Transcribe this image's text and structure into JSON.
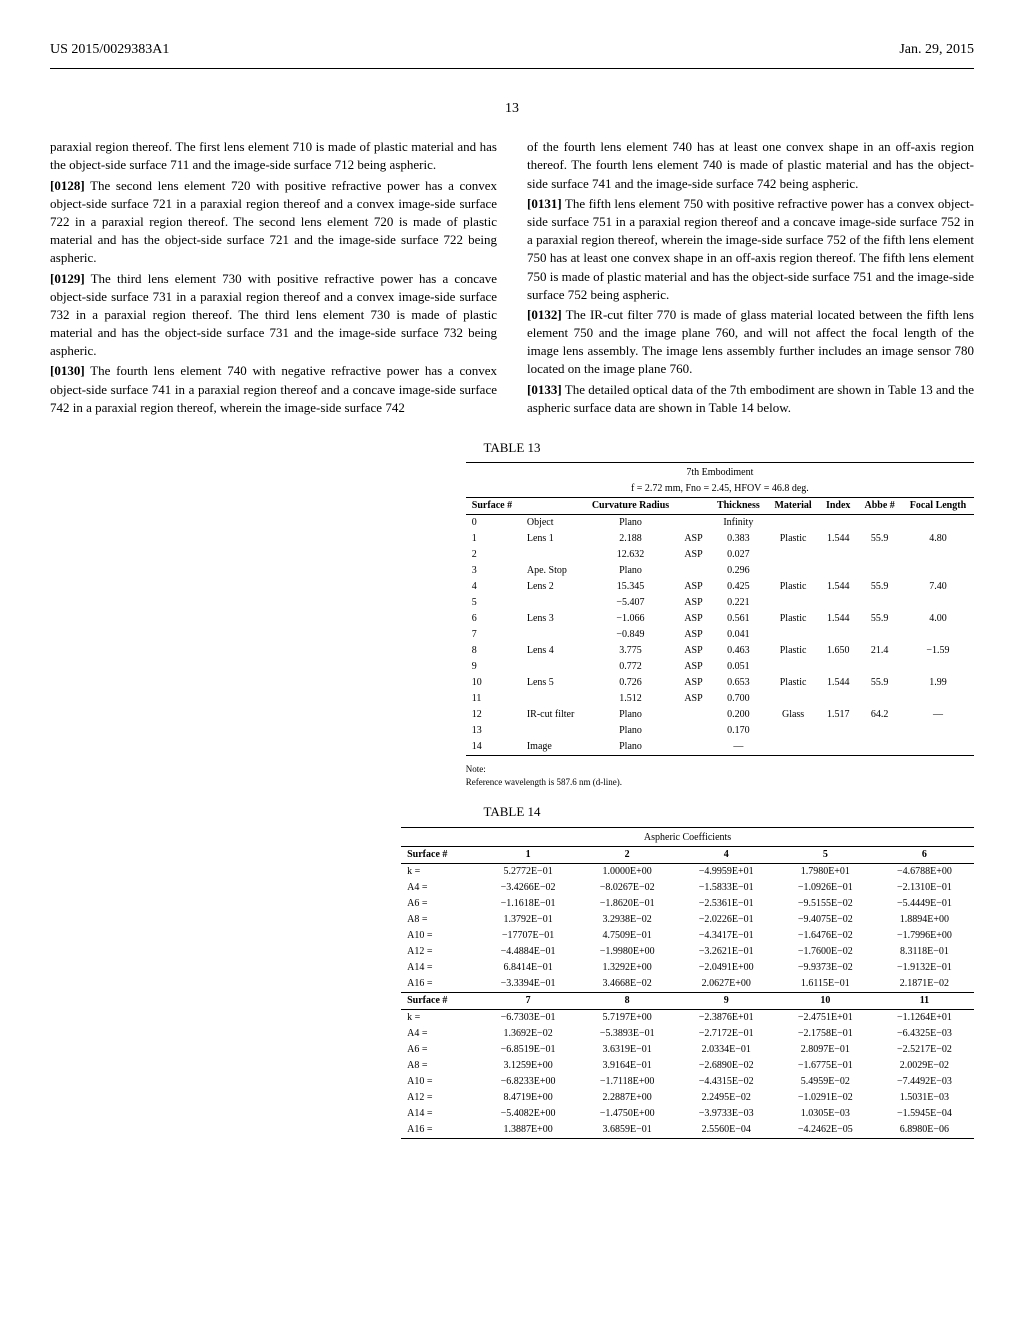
{
  "header": {
    "docnum": "US 2015/0029383A1",
    "date": "Jan. 29, 2015"
  },
  "page_number": "13",
  "left_col": {
    "p1": "paraxial region thereof. The first lens element 710 is made of plastic material and has the object-side surface 711 and the image-side surface 712 being aspheric.",
    "p2_num": "[0128]",
    "p2": "The second lens element 720 with positive refractive power has a convex object-side surface 721 in a paraxial region thereof and a convex image-side surface 722 in a paraxial region thereof. The second lens element 720 is made of plastic material and has the object-side surface 721 and the image-side surface 722 being aspheric.",
    "p3_num": "[0129]",
    "p3": "The third lens element 730 with positive refractive power has a concave object-side surface 731 in a paraxial region thereof and a convex image-side surface 732 in a paraxial region thereof. The third lens element 730 is made of plastic material and has the object-side surface 731 and the image-side surface 732 being aspheric.",
    "p4_num": "[0130]",
    "p4": "The fourth lens element 740 with negative refractive power has a convex object-side surface 741 in a paraxial region thereof and a concave image-side surface 742 in a paraxial region thereof, wherein the image-side surface 742"
  },
  "right_col": {
    "p1": "of the fourth lens element 740 has at least one convex shape in an off-axis region thereof. The fourth lens element 740 is made of plastic material and has the object-side surface 741 and the image-side surface 742 being aspheric.",
    "p2_num": "[0131]",
    "p2": "The fifth lens element 750 with positive refractive power has a convex object-side surface 751 in a paraxial region thereof and a concave image-side surface 752 in a paraxial region thereof, wherein the image-side surface 752 of the fifth lens element 750 has at least one convex shape in an off-axis region thereof. The fifth lens element 750 is made of plastic material and has the object-side surface 751 and the image-side surface 752 being aspheric.",
    "p3_num": "[0132]",
    "p3": "The IR-cut filter 770 is made of glass material located between the fifth lens element 750 and the image plane 760, and will not affect the focal length of the image lens assembly. The image lens assembly further includes an image sensor 780 located on the image plane 760.",
    "p4_num": "[0133]",
    "p4": "The detailed optical data of the 7th embodiment are shown in Table 13 and the aspheric surface data are shown in Table 14 below."
  },
  "table13": {
    "title": "TABLE 13",
    "sub1": "7th Embodiment",
    "sub2": "f = 2.72 mm, Fno = 2.45, HFOV = 46.8 deg.",
    "headers": [
      "Surface #",
      "",
      "Curvature Radius",
      "",
      "Thickness",
      "Material",
      "Index",
      "Abbe #",
      "Focal Length"
    ],
    "rows": [
      [
        "0",
        "Object",
        "Plano",
        "",
        "Infinity",
        "",
        "",
        "",
        ""
      ],
      [
        "1",
        "Lens 1",
        "2.188",
        "ASP",
        "0.383",
        "Plastic",
        "1.544",
        "55.9",
        "4.80"
      ],
      [
        "2",
        "",
        "12.632",
        "ASP",
        "0.027",
        "",
        "",
        "",
        ""
      ],
      [
        "3",
        "Ape. Stop",
        "Plano",
        "",
        "0.296",
        "",
        "",
        "",
        ""
      ],
      [
        "4",
        "Lens 2",
        "15.345",
        "ASP",
        "0.425",
        "Plastic",
        "1.544",
        "55.9",
        "7.40"
      ],
      [
        "5",
        "",
        "−5.407",
        "ASP",
        "0.221",
        "",
        "",
        "",
        ""
      ],
      [
        "6",
        "Lens 3",
        "−1.066",
        "ASP",
        "0.561",
        "Plastic",
        "1.544",
        "55.9",
        "4.00"
      ],
      [
        "7",
        "",
        "−0.849",
        "ASP",
        "0.041",
        "",
        "",
        "",
        ""
      ],
      [
        "8",
        "Lens 4",
        "3.775",
        "ASP",
        "0.463",
        "Plastic",
        "1.650",
        "21.4",
        "−1.59"
      ],
      [
        "9",
        "",
        "0.772",
        "ASP",
        "0.051",
        "",
        "",
        "",
        ""
      ],
      [
        "10",
        "Lens 5",
        "0.726",
        "ASP",
        "0.653",
        "Plastic",
        "1.544",
        "55.9",
        "1.99"
      ],
      [
        "11",
        "",
        "1.512",
        "ASP",
        "0.700",
        "",
        "",
        "",
        ""
      ],
      [
        "12",
        "IR-cut filter",
        "Plano",
        "",
        "0.200",
        "Glass",
        "1.517",
        "64.2",
        "—"
      ],
      [
        "13",
        "",
        "Plano",
        "",
        "0.170",
        "",
        "",
        "",
        ""
      ],
      [
        "14",
        "Image",
        "Plano",
        "",
        "—",
        "",
        "",
        "",
        ""
      ]
    ],
    "note1": "Note:",
    "note2": "Reference wavelength is 587.6 nm (d-line)."
  },
  "table14": {
    "title": "TABLE 14",
    "sub": "Aspheric Coefficients",
    "header1": [
      "Surface #",
      "1",
      "2",
      "4",
      "5",
      "6"
    ],
    "rows1": [
      [
        "k =",
        "5.2772E−01",
        "1.0000E+00",
        "−4.9959E+01",
        "1.7980E+01",
        "−4.6788E+00"
      ],
      [
        "A4 =",
        "−3.4266E−02",
        "−8.0267E−02",
        "−1.5833E−01",
        "−1.0926E−01",
        "−2.1310E−01"
      ],
      [
        "A6 =",
        "−1.1618E−01",
        "−1.8620E−01",
        "−2.5361E−01",
        "−9.5155E−02",
        "−5.4449E−01"
      ],
      [
        "A8 =",
        "1.3792E−01",
        "3.2938E−02",
        "−2.0226E−01",
        "−9.4075E−02",
        "1.8894E+00"
      ],
      [
        "A10 =",
        "−17707E−01",
        "4.7509E−01",
        "−4.3417E−01",
        "−1.6476E−02",
        "−1.7996E+00"
      ],
      [
        "A12 =",
        "−4.4884E−01",
        "−1.9980E+00",
        "−3.2621E−01",
        "−1.7600E−02",
        "8.3118E−01"
      ],
      [
        "A14 =",
        "6.8414E−01",
        "1.3292E+00",
        "−2.0491E+00",
        "−9.9373E−02",
        "−1.9132E−01"
      ],
      [
        "A16 =",
        "−3.3394E−01",
        "3.4668E−02",
        "2.0627E+00",
        "1.6115E−01",
        "2.1871E−02"
      ]
    ],
    "header2": [
      "Surface #",
      "7",
      "8",
      "9",
      "10",
      "11"
    ],
    "rows2": [
      [
        "k =",
        "−6.7303E−01",
        "5.7197E+00",
        "−2.3876E+01",
        "−2.4751E+01",
        "−1.1264E+01"
      ],
      [
        "A4 =",
        "1.3692E−02",
        "−5.3893E−01",
        "−2.7172E−01",
        "−2.1758E−01",
        "−6.4325E−03"
      ],
      [
        "A6 =",
        "−6.8519E−01",
        "3.6319E−01",
        "2.0334E−01",
        "2.8097E−01",
        "−2.5217E−02"
      ],
      [
        "A8 =",
        "3.1259E+00",
        "3.9164E−01",
        "−2.6890E−02",
        "−1.6775E−01",
        "2.0029E−02"
      ],
      [
        "A10 =",
        "−6.8233E+00",
        "−1.7118E+00",
        "−4.4315E−02",
        "5.4959E−02",
        "−7.4492E−03"
      ],
      [
        "A12 =",
        "8.4719E+00",
        "2.2887E+00",
        "2.2495E−02",
        "−1.0291E−02",
        "1.5031E−03"
      ],
      [
        "A14 =",
        "−5.4082E+00",
        "−1.4750E+00",
        "−3.9733E−03",
        "1.0305E−03",
        "−1.5945E−04"
      ],
      [
        "A16 =",
        "1.3887E+00",
        "3.6859E−01",
        "2.5560E−04",
        "−4.2462E−05",
        "6.8980E−06"
      ]
    ]
  }
}
